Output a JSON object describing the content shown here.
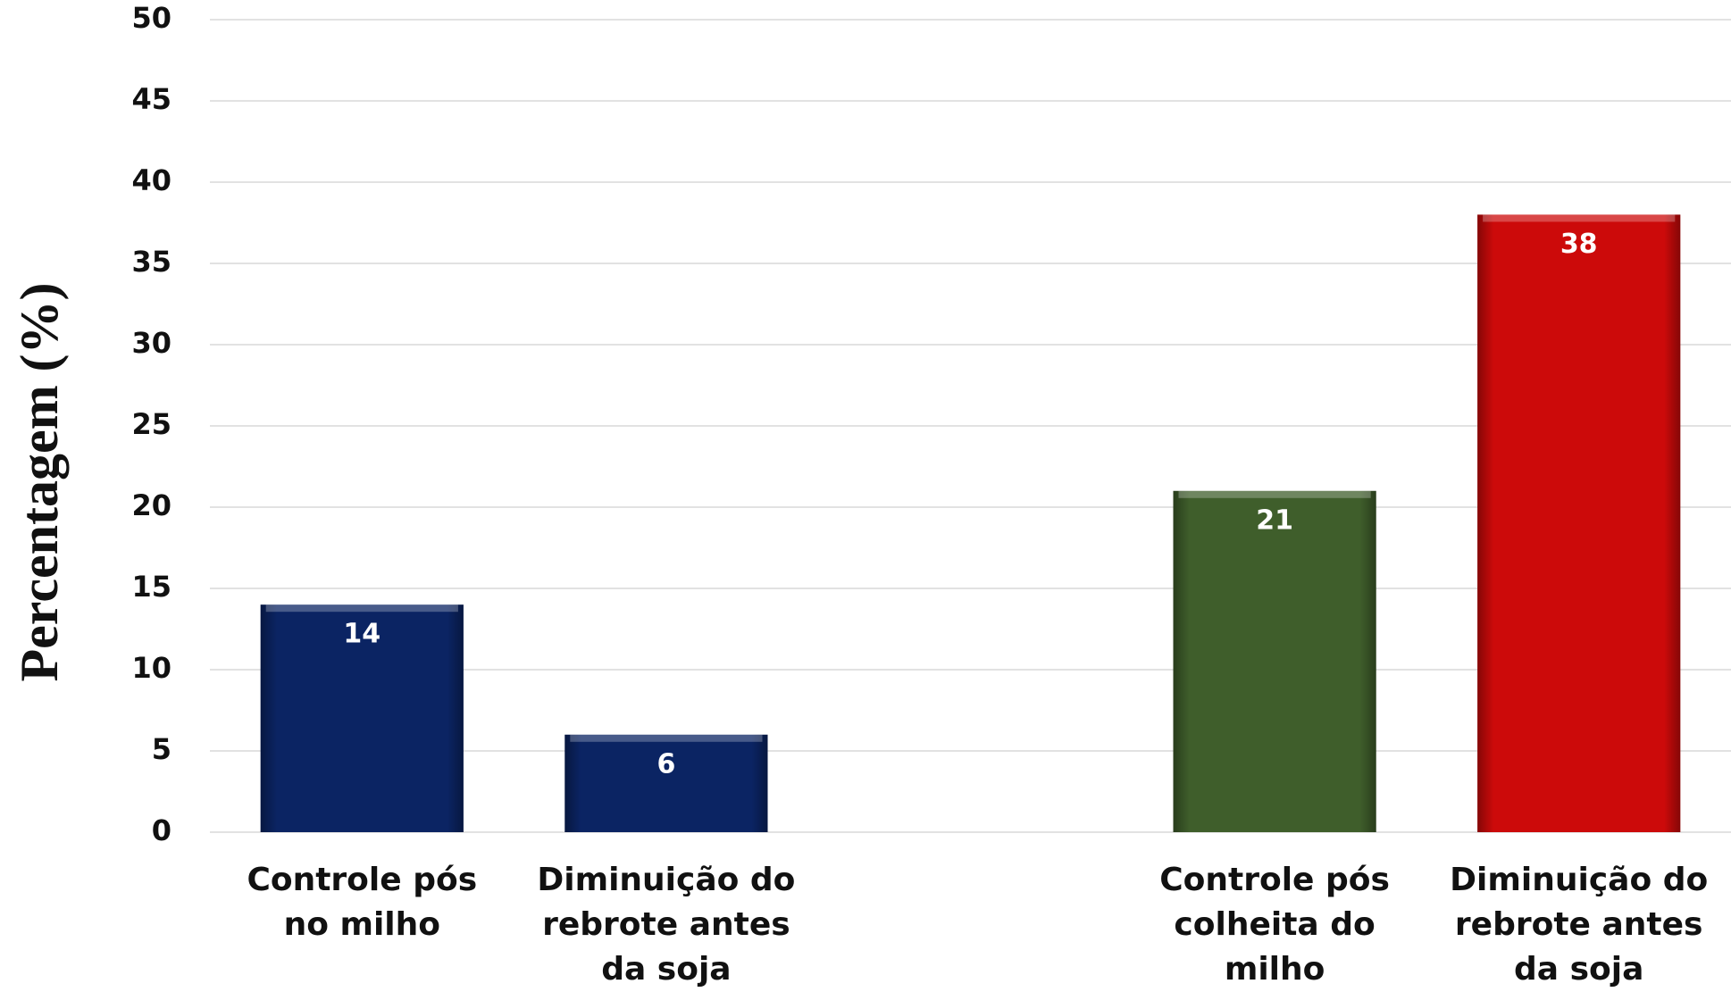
{
  "chart_data": {
    "type": "bar",
    "y_label": "Percentagem (%)",
    "categories": [
      "Controle pós no milho",
      "Diminuição do rebrote antes da soja",
      null,
      "Controle pós colheita do milho",
      "Diminuição do rebrote antes da soja"
    ],
    "values": [
      14,
      6,
      null,
      21,
      38
    ],
    "colors": [
      "#0b2463",
      "#0b2463",
      null,
      "#3f5e2b",
      "#cc0a0a"
    ],
    "ylim": [
      0,
      50
    ],
    "yticks": [
      0,
      5,
      10,
      15,
      20,
      25,
      30,
      35,
      40,
      45,
      50
    ],
    "grid": true
  }
}
